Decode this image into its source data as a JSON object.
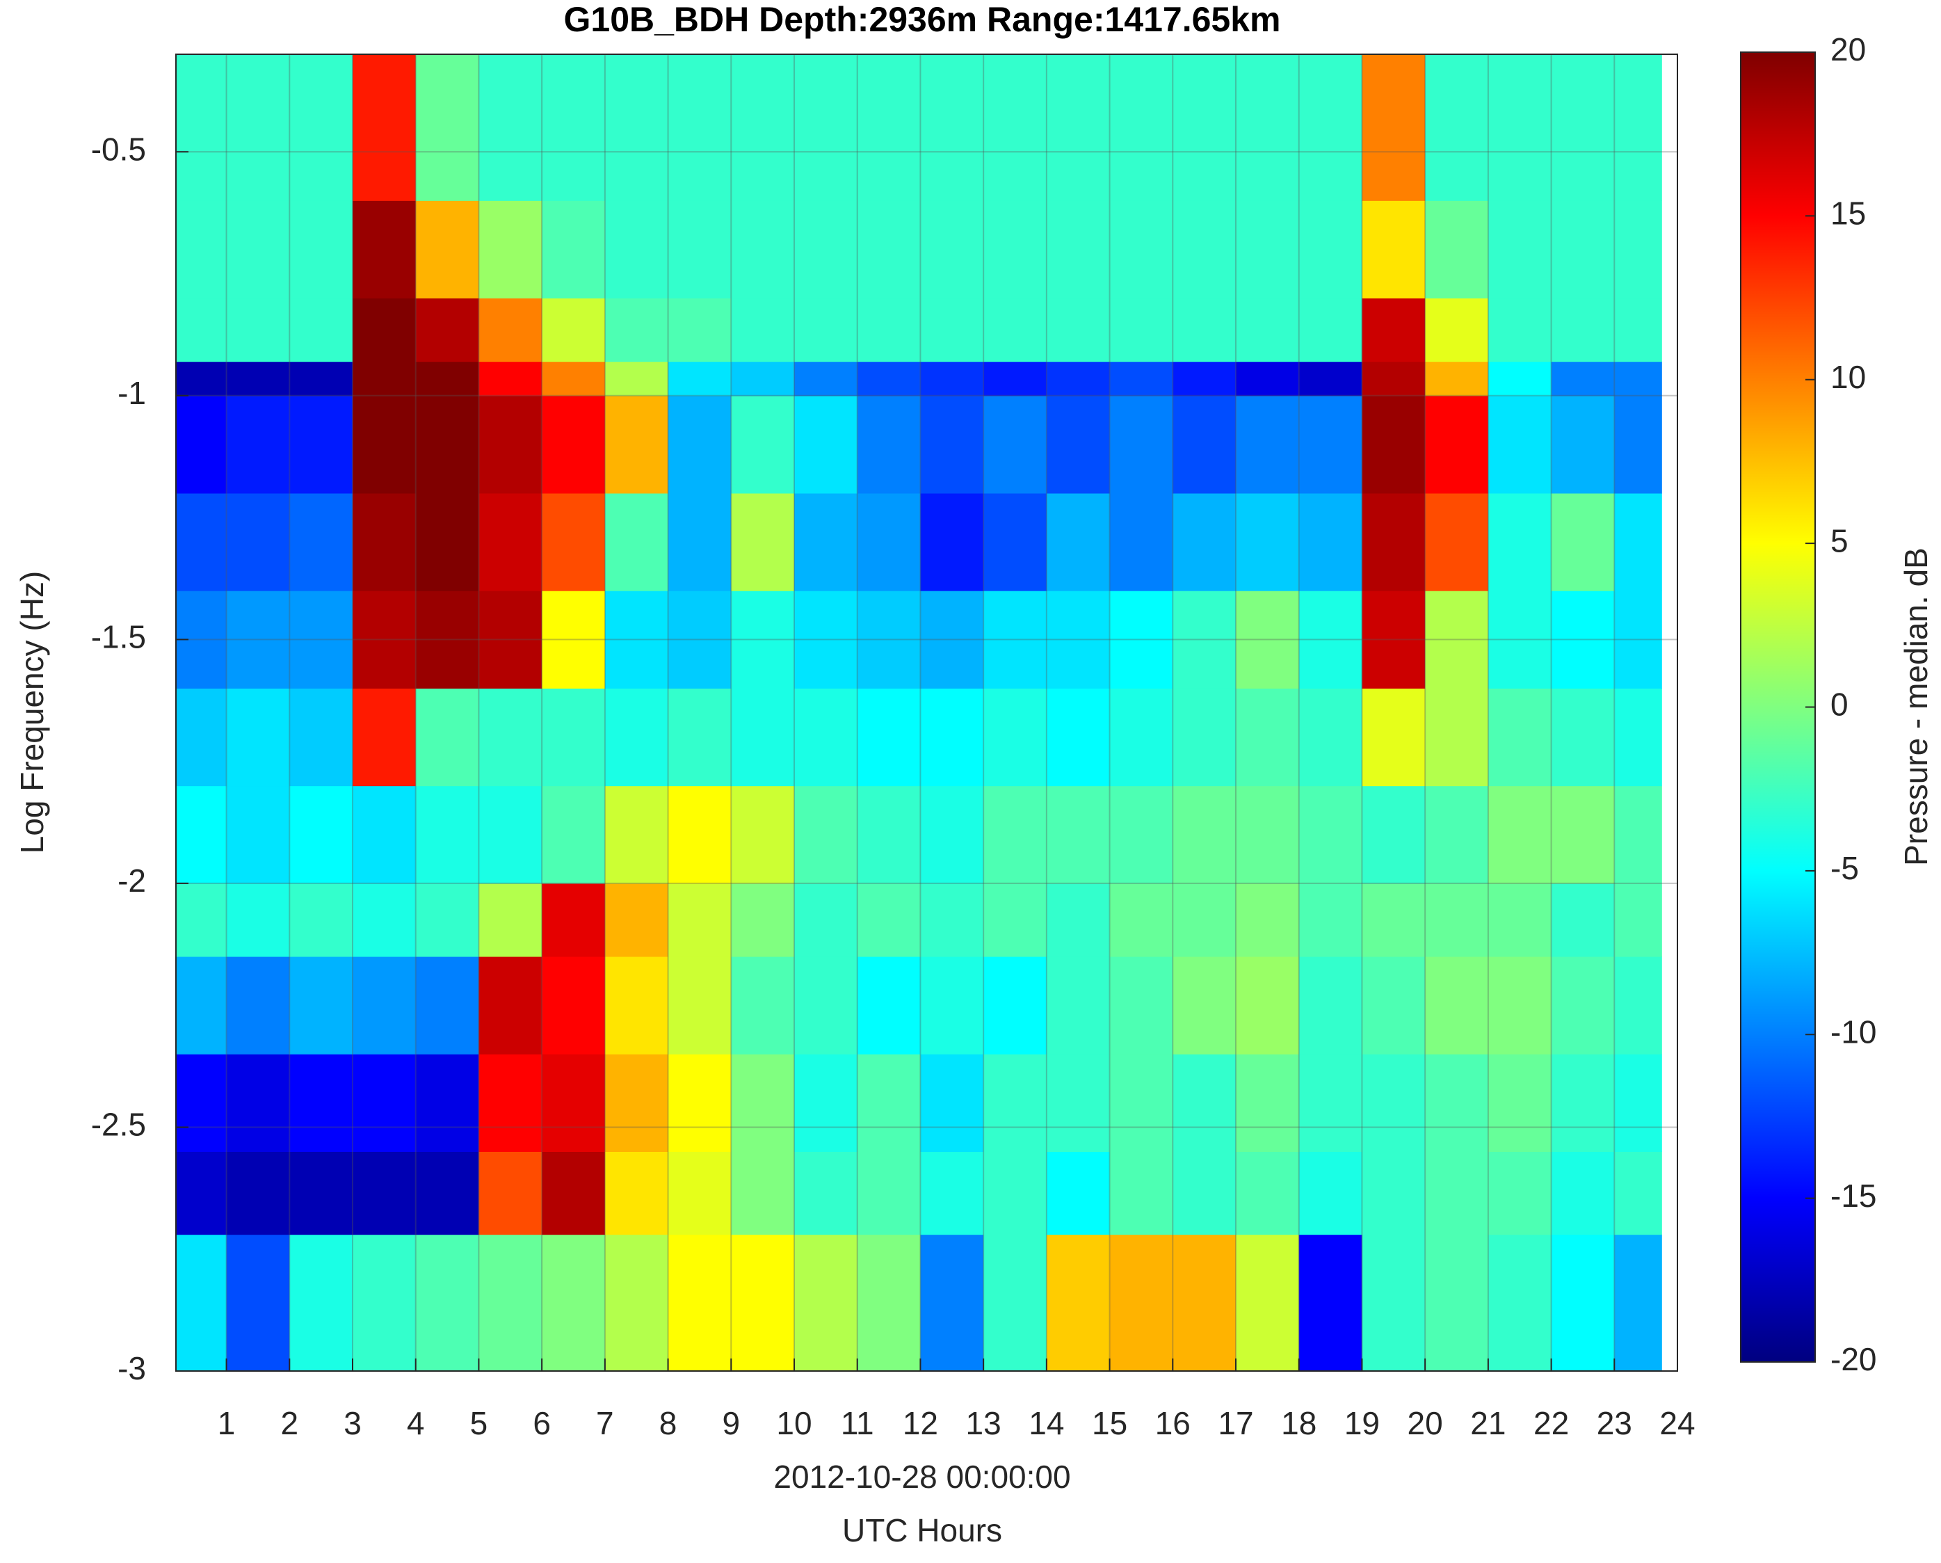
{
  "chart_data": {
    "type": "heatmap",
    "title": "G10B_BDH Depth:2936m  Range:1417.65km",
    "xlabel": [
      "2012-10-28 00:00:00",
      "UTC Hours"
    ],
    "ylabel": "Log Frequency (Hz)",
    "xlim": [
      0.2,
      24
    ],
    "ylim": [
      -3,
      -0.3
    ],
    "xticks": [
      1,
      2,
      3,
      4,
      5,
      6,
      7,
      8,
      9,
      10,
      11,
      12,
      13,
      14,
      15,
      16,
      17,
      18,
      19,
      20,
      21,
      22,
      23,
      24
    ],
    "yticks": [
      -3,
      -2.5,
      -2,
      -1.5,
      -1,
      -0.5
    ],
    "grid": true,
    "colormap": "jet",
    "xbins": [
      0.2,
      1,
      2,
      3,
      4,
      5,
      6,
      7,
      8,
      9,
      10,
      11,
      12,
      13,
      14,
      15,
      16,
      17,
      18,
      19,
      20,
      21,
      22,
      23,
      23.75
    ],
    "ybins": [
      -3,
      -2.72,
      -2.55,
      -2.35,
      -2.15,
      -2,
      -1.8,
      -1.6,
      -1.4,
      -1.2,
      -1,
      -0.93,
      -0.8,
      -0.6,
      -0.3
    ],
    "values": [
      [
        -6,
        -12,
        -4,
        -3,
        -2,
        -1,
        0,
        2,
        5,
        5,
        2,
        0,
        -10,
        -3,
        7,
        8,
        8,
        3,
        -15,
        -3,
        -2,
        -3,
        -5,
        -8
      ],
      [
        -17,
        -18,
        -18,
        -18,
        -18,
        12,
        18,
        6,
        4,
        0,
        -3,
        -2,
        -4,
        -3,
        -5,
        -2,
        -3,
        -2,
        -4,
        -3,
        -2,
        -2,
        -4,
        -3
      ],
      [
        -15,
        -16,
        -15,
        -15,
        -16,
        15,
        16,
        8,
        5,
        0,
        -4,
        -2,
        -6,
        -3,
        -3,
        -2,
        -3,
        -1,
        -3,
        -3,
        -2,
        -1,
        -3,
        -4
      ],
      [
        -8,
        -10,
        -8,
        -9,
        -10,
        17,
        15,
        6,
        3,
        -2,
        -3,
        -5,
        -4,
        -5,
        -3,
        -2,
        0,
        1,
        -3,
        -2,
        0,
        0,
        -2,
        -3
      ],
      [
        -3,
        -4,
        -3,
        -4,
        -3,
        2,
        16,
        8,
        3,
        0,
        -3,
        -2,
        -3,
        -2,
        -3,
        -1,
        -1,
        0,
        -2,
        -1,
        -1,
        -1,
        -3,
        -2
      ],
      [
        -5,
        -6,
        -5,
        -6,
        -4,
        -4,
        -2,
        3,
        5,
        3,
        -2,
        -3,
        -4,
        -2,
        -2,
        -2,
        -1,
        -1,
        -2,
        -3,
        -2,
        0,
        0,
        -2
      ],
      [
        -7,
        -6,
        -7,
        14,
        -2,
        -3,
        -3,
        -4,
        -3,
        -4,
        -4,
        -5,
        -5,
        -4,
        -5,
        -4,
        -3,
        -2,
        -3,
        4,
        2,
        -2,
        -3,
        -4
      ],
      [
        -10,
        -9,
        -9,
        18,
        19,
        18,
        5,
        -6,
        -7,
        -4,
        -6,
        -7,
        -8,
        -6,
        -6,
        -5,
        -3,
        0,
        -4,
        17,
        2,
        -4,
        -5,
        -6
      ],
      [
        -12,
        -12,
        -11,
        19,
        20,
        17,
        12,
        -2,
        -8,
        2,
        -8,
        -9,
        -14,
        -12,
        -8,
        -10,
        -8,
        -7,
        -8,
        18,
        12,
        -4,
        -1,
        -6
      ],
      [
        -15,
        -14,
        -14,
        20,
        20,
        18,
        15,
        8,
        -8,
        -3,
        -6,
        -10,
        -12,
        -10,
        -12,
        -10,
        -12,
        -10,
        -10,
        19,
        15,
        -6,
        -8,
        -10
      ],
      [
        -18,
        -18,
        -18,
        20,
        20,
        15,
        10,
        2,
        -6,
        -7,
        -10,
        -12,
        -13,
        -14,
        -13,
        -12,
        -14,
        -16,
        -17,
        18,
        8,
        -5,
        -10,
        -10
      ],
      [
        -3,
        -3,
        -3,
        20,
        18,
        10,
        3,
        -2,
        -2,
        -3,
        -3,
        -3,
        -3,
        -3,
        -3,
        -3,
        -3,
        -3,
        -3,
        17,
        4,
        -3,
        -3,
        -3
      ],
      [
        -3,
        -3,
        -3,
        19,
        8,
        1,
        -2,
        -3,
        -3,
        -3,
        -3,
        -3,
        -3,
        -3,
        -3,
        -3,
        -3,
        -3,
        -3,
        6,
        -1,
        -3,
        -3,
        -3
      ],
      [
        -3,
        -3,
        -3,
        14,
        -1,
        -3,
        -3,
        -3,
        -3,
        -3,
        -3,
        -3,
        -3,
        -3,
        -3,
        -3,
        -3,
        -3,
        -3,
        10,
        -3,
        -3,
        -3,
        -3
      ]
    ],
    "colorbar": {
      "label": "Pressure - median. dB",
      "clim": [
        -20,
        20
      ],
      "ticks": [
        -20,
        -15,
        -10,
        -5,
        0,
        5,
        10,
        15,
        20
      ]
    }
  }
}
